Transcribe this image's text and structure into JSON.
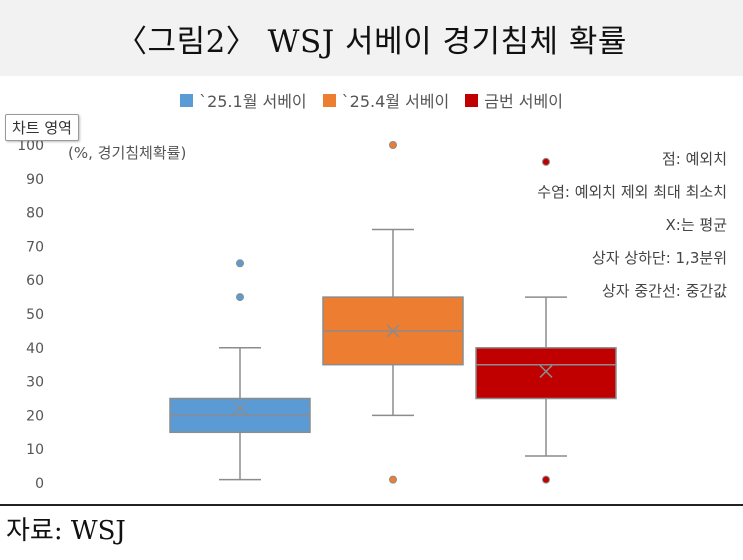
{
  "header": {
    "title": "〈그림2〉 WSJ 서베이 경기침체 확률"
  },
  "tooltip": {
    "label": "차트 영역"
  },
  "chart_data": {
    "type": "boxplot",
    "ylabel_note": "(%, 경기침체확률)",
    "ylim": [
      0,
      100
    ],
    "y_ticks": [
      "0",
      "10",
      "20",
      "30",
      "40",
      "50",
      "60",
      "70",
      "80",
      "90",
      "100"
    ],
    "grid": false,
    "legend_position": "top",
    "series": [
      {
        "name": "`25.1월 서베이",
        "color": "#5b9bd5",
        "whisker_low": 1,
        "q1": 15,
        "median": 20,
        "q3": 25,
        "whisker_high": 40,
        "mean": 22,
        "outliers": [
          55,
          65
        ]
      },
      {
        "name": "`25.4월 서베이",
        "color": "#ed7d31",
        "whisker_low": 20,
        "q1": 35,
        "median": 45,
        "q3": 55,
        "whisker_high": 75,
        "mean": 45,
        "outliers": [
          1,
          100
        ]
      },
      {
        "name": "금번 서베이",
        "color": "#c00000",
        "whisker_low": 8,
        "q1": 25,
        "median": 35,
        "q3": 40,
        "whisker_high": 55,
        "mean": 33,
        "outliers": [
          1,
          95
        ]
      }
    ],
    "annotations": [
      "점: 예외치",
      "수염: 예외치 제외 최대 최소치",
      "X:는 평균",
      "상자 상하단: 1,3분위",
      "상자 중간선: 중간값"
    ]
  },
  "footer": {
    "source": "자료: WSJ"
  }
}
